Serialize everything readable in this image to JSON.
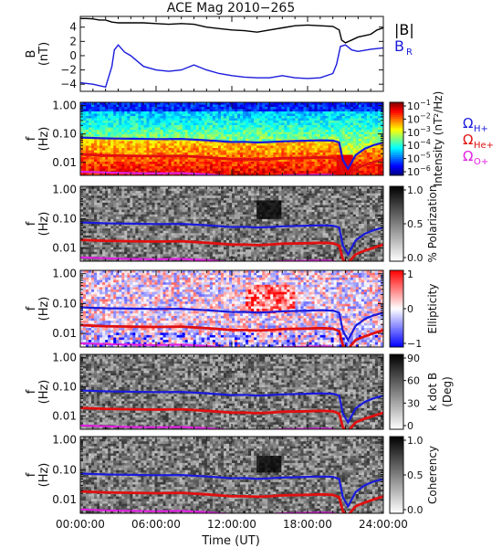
{
  "chart_data": {
    "type": "line",
    "title": "ACE Mag 2010−265",
    "xlabel": "Time (UT)",
    "x_ticks": [
      "00:00:00",
      "06:00:00",
      "12:00:00",
      "18:00:00",
      "24:00:00"
    ],
    "xlim_hours": [
      0,
      24
    ],
    "panels": [
      {
        "id": "b",
        "ylabel": [
          "B",
          "(nT)"
        ],
        "ylim": [
          -5,
          5.5
        ],
        "y_ticks": [
          "4",
          "2",
          "0",
          "−2",
          "−4"
        ],
        "y_tick_values": [
          4,
          2,
          0,
          -2,
          -4
        ],
        "legend": [
          {
            "text": "|B|",
            "color": "#000000"
          },
          {
            "text": "B",
            "sub": "R",
            "color": "#1a1adc"
          }
        ],
        "series": [
          {
            "name": "|B|",
            "color": "#000000",
            "x": [
              0,
              0.5,
              1,
              1.5,
              2,
              2.5,
              3,
              3.5,
              4,
              5,
              6,
              7,
              8,
              9,
              10,
              11,
              12,
              13,
              14,
              15,
              16,
              17,
              18,
              19,
              20,
              20.5,
              20.7,
              21,
              21.5,
              22,
              22.5,
              23,
              23.5,
              24
            ],
            "y": [
              5.2,
              5.2,
              5.15,
              5.0,
              5.0,
              4.7,
              4.6,
              4.6,
              4.6,
              4.6,
              4.5,
              4.4,
              4.5,
              4.4,
              4.0,
              3.8,
              3.6,
              3.5,
              3.3,
              3.6,
              3.9,
              4.2,
              4.3,
              4.2,
              4.1,
              3.6,
              2.2,
              1.8,
              2.2,
              2.6,
              2.8,
              3.0,
              3.6,
              3.9
            ]
          },
          {
            "name": "B_R",
            "color": "#1a1adc",
            "x": [
              0,
              1,
              2,
              2.5,
              2.7,
              3,
              3.5,
              4,
              5,
              6,
              7,
              8,
              9,
              10,
              11,
              12,
              13,
              14,
              15,
              16,
              17,
              18,
              19,
              20,
              20.3,
              20.6,
              21,
              21.5,
              22,
              23,
              24
            ],
            "y": [
              -3.8,
              -4.0,
              -4.4,
              -1.5,
              0.8,
              1.5,
              0.5,
              0.0,
              -1.5,
              -2.0,
              -2.2,
              -2.0,
              -1.3,
              -2.0,
              -2.5,
              -2.8,
              -3.0,
              -3.1,
              -3.1,
              -2.8,
              -3.1,
              -3.2,
              -3.1,
              -2.5,
              -1.2,
              1.3,
              1.5,
              0.8,
              0.6,
              0.9,
              1.1
            ]
          }
        ]
      },
      {
        "id": "intensity",
        "ylabel": [
          "f",
          "(Hz)"
        ],
        "y_ticks": [
          "1.00",
          "0.10",
          "0.01"
        ],
        "colorbar_label": "Intensity (nT²/Hz)",
        "colorbar_ticks": [
          "10",
          "10",
          "10",
          "10",
          "10",
          "10"
        ],
        "colorbar_tick_exps": [
          "−1",
          "−2",
          "−3",
          "−4",
          "−5",
          "−6"
        ],
        "legend": [
          {
            "text": "Ω",
            "sub": "H+",
            "color": "#1a1adc"
          },
          {
            "text": "Ω",
            "sub": "He+",
            "color": "#e01010"
          },
          {
            "text": "Ω",
            "sub": "O+",
            "color": "#e020e0"
          }
        ]
      },
      {
        "id": "polarization",
        "ylabel": [
          "f",
          "(Hz)"
        ],
        "y_ticks": [
          "1.00",
          "0.10",
          "0.01"
        ],
        "colorbar_label": "% Polarization",
        "colorbar_ticks": [
          "1.0",
          "0.5",
          "0.0"
        ]
      },
      {
        "id": "ellipticity",
        "ylabel": [
          "f",
          "(Hz)"
        ],
        "y_ticks": [
          "1.00",
          "0.10",
          "0.01"
        ],
        "colorbar_label": "Ellipticity",
        "colorbar_ticks": [
          "1",
          "0",
          "−1"
        ]
      },
      {
        "id": "kdotb",
        "ylabel": [
          "f",
          "(Hz)"
        ],
        "y_ticks": [
          "1.00",
          "0.10",
          "0.01"
        ],
        "colorbar_label": "k dot B",
        "colorbar_label2": "(Deg)",
        "colorbar_ticks": [
          "90",
          "60",
          "30",
          "0"
        ]
      },
      {
        "id": "coherency",
        "ylabel": [
          "f",
          "(Hz)"
        ],
        "y_ticks": [
          "1.00",
          "0.10",
          "0.01"
        ],
        "colorbar_label": "Coherency",
        "colorbar_ticks": [
          "1.0",
          "0.5",
          "0.0"
        ]
      }
    ],
    "gyrofrequency_lines": {
      "x_hours": [
        0,
        2,
        4,
        6,
        8,
        10,
        11,
        12,
        13,
        14,
        15,
        16,
        18,
        19,
        20,
        20.5,
        20.8,
        21.2,
        21.8,
        22.5,
        23.2,
        24
      ],
      "H+": [
        0.075,
        0.07,
        0.068,
        0.066,
        0.067,
        0.06,
        0.056,
        0.052,
        0.053,
        0.05,
        0.052,
        0.055,
        0.058,
        0.06,
        0.058,
        0.05,
        0.012,
        0.006,
        0.018,
        0.03,
        0.04,
        0.05
      ],
      "He+": [
        0.019,
        0.0175,
        0.017,
        0.0165,
        0.017,
        0.015,
        0.014,
        0.013,
        0.013,
        0.0125,
        0.013,
        0.014,
        0.0145,
        0.015,
        0.0145,
        0.012,
        0.004,
        0.003,
        0.006,
        0.008,
        0.01,
        0.013
      ],
      "O+": [
        0.0047,
        0.0044,
        0.0042,
        0.0041,
        0.0042,
        0.0038,
        0.0035,
        0.0033,
        0.0033,
        0.0031,
        0.0033,
        0.0035,
        0.0036,
        0.0037,
        0.0036,
        0.0031,
        0.003,
        0.003,
        0.003,
        0.003,
        0.003,
        0.0033
      ]
    },
    "colors": {
      "H+": "#1a1adc",
      "He+": "#e01010",
      "O+": "#e020e0",
      "absB": "#000000",
      "BR": "#1a1adc"
    }
  }
}
